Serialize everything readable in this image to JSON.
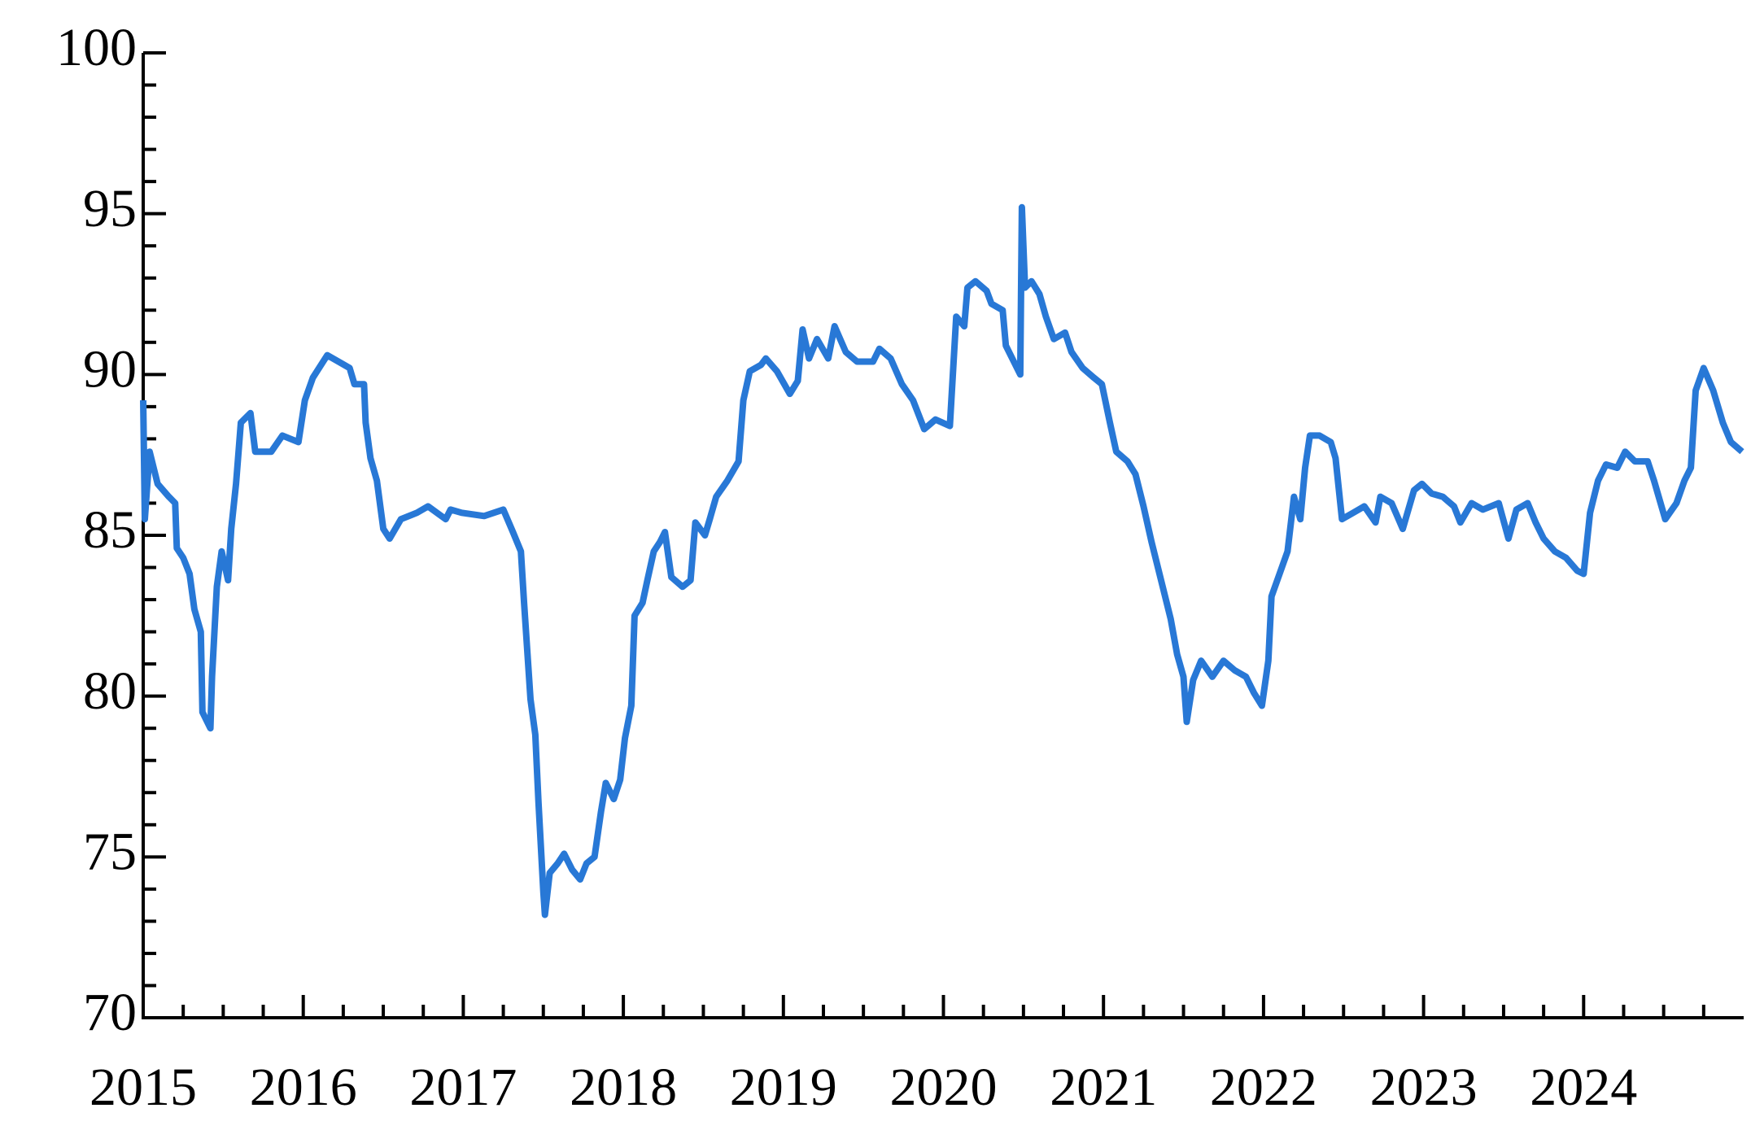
{
  "chart_data": {
    "type": "line",
    "x": [
      2015.0,
      2015.01,
      2015.04,
      2015.09,
      2015.16,
      2015.2,
      2015.21,
      2015.25,
      2015.29,
      2015.32,
      2015.36,
      2015.37,
      2015.42,
      2015.43,
      2015.46,
      2015.49,
      2015.53,
      2015.55,
      2015.58,
      2015.61,
      2015.67,
      2015.7,
      2015.8,
      2015.87,
      2015.97,
      2016.01,
      2016.06,
      2016.15,
      2016.22,
      2016.29,
      2016.32,
      2016.38,
      2016.39,
      2016.42,
      2016.46,
      2016.5,
      2016.54,
      2016.61,
      2016.71,
      2016.78,
      2016.89,
      2016.92,
      2016.99,
      2017.13,
      2017.25,
      2017.31,
      2017.36,
      2017.38,
      2017.42,
      2017.45,
      2017.47,
      2017.5,
      2017.51,
      2017.54,
      2017.59,
      2017.63,
      2017.68,
      2017.73,
      2017.77,
      2017.82,
      2017.86,
      2017.89,
      2017.94,
      2017.98,
      2018.01,
      2018.05,
      2018.07,
      2018.12,
      2018.15,
      2018.19,
      2018.23,
      2018.26,
      2018.3,
      2018.37,
      2018.42,
      2018.45,
      2018.51,
      2018.54,
      2018.58,
      2018.65,
      2018.72,
      2018.75,
      2018.79,
      2018.86,
      2018.89,
      2018.96,
      2019.04,
      2019.09,
      2019.12,
      2019.16,
      2019.21,
      2019.28,
      2019.32,
      2019.39,
      2019.46,
      2019.56,
      2019.6,
      2019.67,
      2019.74,
      2019.81,
      2019.88,
      2019.95,
      2020.04,
      2020.08,
      2020.13,
      2020.15,
      2020.2,
      2020.27,
      2020.3,
      2020.37,
      2020.39,
      2020.44,
      2020.48,
      2020.49,
      2020.51,
      2020.55,
      2020.6,
      2020.64,
      2020.69,
      2020.76,
      2020.8,
      2020.87,
      2020.94,
      2020.99,
      2021.04,
      2021.08,
      2021.15,
      2021.2,
      2021.25,
      2021.3,
      2021.36,
      2021.42,
      2021.46,
      2021.5,
      2021.52,
      2021.56,
      2021.61,
      2021.68,
      2021.75,
      2021.82,
      2021.89,
      2021.94,
      2021.99,
      2022.03,
      2022.05,
      2022.1,
      2022.15,
      2022.19,
      2022.23,
      2022.26,
      2022.29,
      2022.35,
      2022.42,
      2022.45,
      2022.49,
      2022.56,
      2022.63,
      2022.7,
      2022.73,
      2022.8,
      2022.87,
      2022.94,
      2022.99,
      2023.05,
      2023.12,
      2023.19,
      2023.23,
      2023.3,
      2023.37,
      2023.47,
      2023.53,
      2023.58,
      2023.65,
      2023.7,
      2023.75,
      2023.82,
      2023.89,
      2023.96,
      2024.0,
      2024.04,
      2024.09,
      2024.14,
      2024.21,
      2024.26,
      2024.32,
      2024.4,
      2024.44,
      2024.51,
      2024.58,
      2024.63,
      2024.67,
      2024.7,
      2024.75,
      2024.81,
      2024.87,
      2024.92,
      2024.99
    ],
    "series": [
      {
        "color": "#2878d6",
        "values": [
          89.2,
          85.5,
          87.6,
          86.6,
          86.2,
          86.0,
          84.6,
          84.3,
          83.8,
          82.7,
          82.0,
          79.5,
          79.0,
          80.6,
          83.4,
          84.5,
          83.6,
          85.2,
          86.6,
          88.5,
          88.8,
          87.6,
          87.6,
          88.1,
          87.9,
          89.2,
          89.9,
          90.6,
          90.4,
          90.2,
          89.7,
          89.7,
          88.5,
          87.4,
          86.7,
          85.2,
          84.9,
          85.5,
          85.7,
          85.9,
          85.5,
          85.8,
          85.7,
          85.6,
          85.8,
          85.1,
          84.5,
          82.9,
          79.9,
          78.8,
          76.7,
          73.9,
          73.2,
          74.5,
          74.8,
          75.1,
          74.6,
          74.3,
          74.8,
          75.0,
          76.4,
          77.3,
          76.8,
          77.4,
          78.7,
          79.7,
          82.5,
          82.9,
          83.6,
          84.5,
          84.8,
          85.1,
          83.7,
          83.4,
          83.6,
          85.4,
          85.0,
          85.5,
          86.2,
          86.7,
          87.3,
          89.2,
          90.1,
          90.3,
          90.5,
          90.1,
          89.4,
          89.8,
          91.4,
          90.5,
          91.1,
          90.5,
          91.5,
          90.7,
          90.4,
          90.4,
          90.8,
          90.5,
          89.7,
          89.2,
          88.3,
          88.6,
          88.4,
          91.8,
          91.5,
          92.7,
          92.9,
          92.6,
          92.2,
          92.0,
          90.9,
          90.4,
          90.0,
          95.2,
          92.7,
          92.9,
          92.5,
          91.8,
          91.1,
          91.3,
          90.7,
          90.2,
          89.9,
          89.7,
          88.5,
          87.6,
          87.3,
          86.9,
          85.9,
          84.8,
          83.6,
          82.4,
          81.3,
          80.6,
          79.2,
          80.5,
          81.1,
          80.6,
          81.1,
          80.8,
          80.6,
          80.1,
          79.7,
          81.1,
          83.1,
          83.8,
          84.5,
          86.2,
          85.5,
          87.1,
          88.1,
          88.1,
          87.9,
          87.4,
          85.5,
          85.7,
          85.9,
          85.4,
          86.2,
          86.0,
          85.2,
          86.4,
          86.6,
          86.3,
          86.2,
          85.9,
          85.4,
          86.0,
          85.8,
          86.0,
          84.9,
          85.8,
          86.0,
          85.4,
          84.9,
          84.5,
          84.3,
          83.9,
          83.8,
          85.7,
          86.7,
          87.2,
          87.1,
          87.6,
          87.3,
          87.3,
          86.7,
          85.5,
          86.0,
          86.7,
          87.1,
          89.5,
          90.2,
          89.5,
          88.5,
          87.9,
          87.6
        ]
      }
    ],
    "xlim": [
      2015,
      2025
    ],
    "xticks": [
      2015,
      2016,
      2017,
      2018,
      2019,
      2020,
      2021,
      2022,
      2023,
      2024
    ],
    "ylim": [
      70,
      100
    ],
    "yticks": [
      70,
      75,
      80,
      85,
      90,
      95,
      100
    ]
  }
}
